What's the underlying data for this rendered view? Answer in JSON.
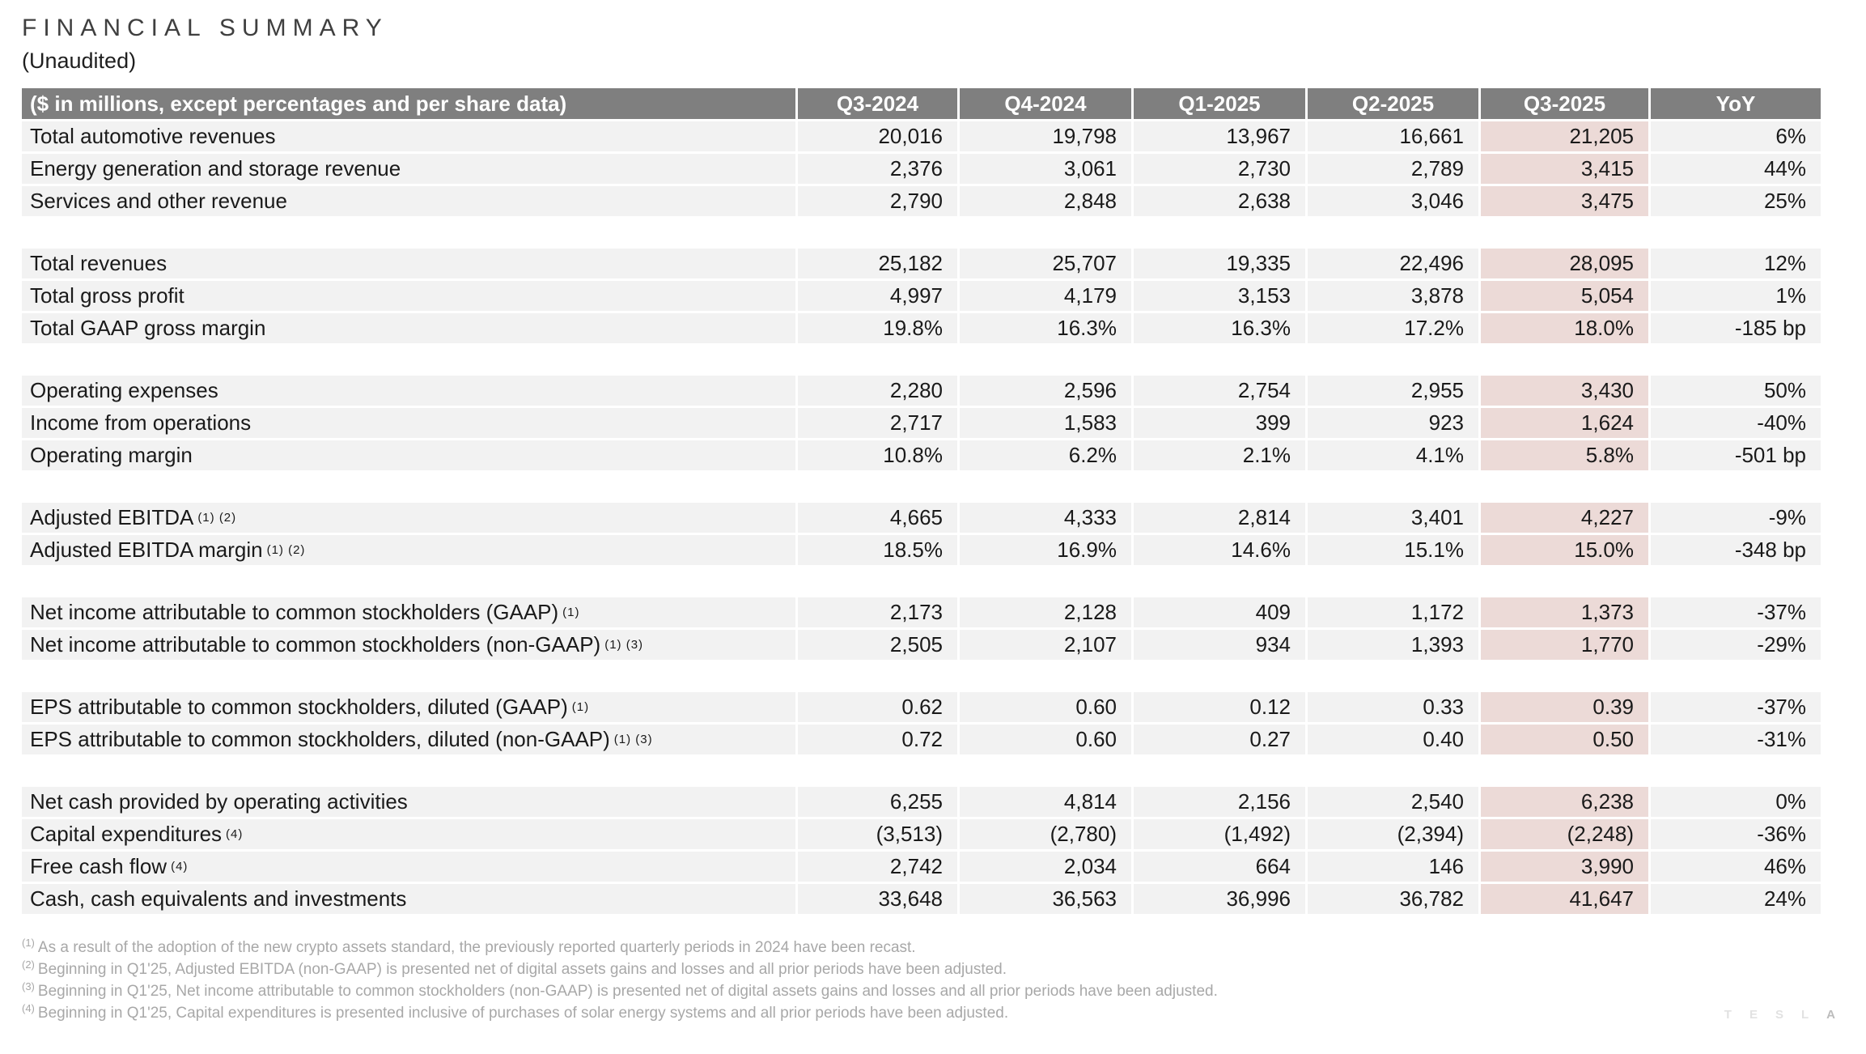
{
  "page": {
    "title": "FINANCIAL SUMMARY",
    "subtitle": "(Unaudited)"
  },
  "colors": {
    "header_bg": "#7f7f7f",
    "row_bg": "#f2f2f2",
    "highlight_bg": "#ecdad7",
    "footnote_text": "#a8a8a8"
  },
  "table": {
    "label_header": "($ in millions, except percentages and per share data)",
    "columns": [
      "Q3-2024",
      "Q4-2024",
      "Q1-2025",
      "Q2-2025",
      "Q3-2025",
      "YoY"
    ],
    "highlight_column": "Q3-2025",
    "groups": [
      {
        "rows": [
          {
            "label": "Total automotive revenues",
            "sup": "",
            "values": [
              "20,016",
              "19,798",
              "13,967",
              "16,661",
              "21,205",
              "6%"
            ]
          },
          {
            "label": "Energy generation and storage revenue",
            "sup": "",
            "values": [
              "2,376",
              "3,061",
              "2,730",
              "2,789",
              "3,415",
              "44%"
            ]
          },
          {
            "label": "Services and other revenue",
            "sup": "",
            "values": [
              "2,790",
              "2,848",
              "2,638",
              "3,046",
              "3,475",
              "25%"
            ]
          }
        ]
      },
      {
        "rows": [
          {
            "label": "Total revenues",
            "sup": "",
            "values": [
              "25,182",
              "25,707",
              "19,335",
              "22,496",
              "28,095",
              "12%"
            ]
          },
          {
            "label": "Total gross profit",
            "sup": "",
            "values": [
              "4,997",
              "4,179",
              "3,153",
              "3,878",
              "5,054",
              "1%"
            ]
          },
          {
            "label": "Total GAAP gross margin",
            "sup": "",
            "values": [
              "19.8%",
              "16.3%",
              "16.3%",
              "17.2%",
              "18.0%",
              "-185 bp"
            ]
          }
        ]
      },
      {
        "rows": [
          {
            "label": "Operating expenses",
            "sup": "",
            "values": [
              "2,280",
              "2,596",
              "2,754",
              "2,955",
              "3,430",
              "50%"
            ]
          },
          {
            "label": "Income from operations",
            "sup": "",
            "values": [
              "2,717",
              "1,583",
              "399",
              "923",
              "1,624",
              "-40%"
            ]
          },
          {
            "label": "Operating margin",
            "sup": "",
            "values": [
              "10.8%",
              "6.2%",
              "2.1%",
              "4.1%",
              "5.8%",
              "-501 bp"
            ]
          }
        ]
      },
      {
        "rows": [
          {
            "label": "Adjusted EBITDA",
            "sup": "(1) (2)",
            "values": [
              "4,665",
              "4,333",
              "2,814",
              "3,401",
              "4,227",
              "-9%"
            ]
          },
          {
            "label": "Adjusted EBITDA margin",
            "sup": "(1) (2)",
            "values": [
              "18.5%",
              "16.9%",
              "14.6%",
              "15.1%",
              "15.0%",
              "-348 bp"
            ]
          }
        ]
      },
      {
        "rows": [
          {
            "label": "Net income attributable to common stockholders (GAAP)",
            "sup": "(1)",
            "values": [
              "2,173",
              "2,128",
              "409",
              "1,172",
              "1,373",
              "-37%"
            ]
          },
          {
            "label": "Net income attributable to common stockholders (non-GAAP)",
            "sup": "(1) (3)",
            "values": [
              "2,505",
              "2,107",
              "934",
              "1,393",
              "1,770",
              "-29%"
            ]
          }
        ]
      },
      {
        "rows": [
          {
            "label": "EPS attributable to common stockholders, diluted (GAAP)",
            "sup": "(1)",
            "values": [
              "0.62",
              "0.60",
              "0.12",
              "0.33",
              "0.39",
              "-37%"
            ]
          },
          {
            "label": "EPS attributable to common stockholders, diluted (non-GAAP)",
            "sup": "(1) (3)",
            "values": [
              "0.72",
              "0.60",
              "0.27",
              "0.40",
              "0.50",
              "-31%"
            ]
          }
        ]
      },
      {
        "rows": [
          {
            "label": "Net cash provided by operating activities",
            "sup": "",
            "values": [
              "6,255",
              "4,814",
              "2,156",
              "2,540",
              "6,238",
              "0%"
            ]
          },
          {
            "label": "Capital expenditures",
            "sup": "(4)",
            "values": [
              "(3,513)",
              "(2,780)",
              "(1,492)",
              "(2,394)",
              "(2,248)",
              "-36%"
            ]
          },
          {
            "label": "Free cash flow",
            "sup": "(4)",
            "values": [
              "2,742",
              "2,034",
              "664",
              "146",
              "3,990",
              "46%"
            ]
          },
          {
            "label": "Cash, cash equivalents and investments",
            "sup": "",
            "values": [
              "33,648",
              "36,563",
              "36,996",
              "36,782",
              "41,647",
              "24%"
            ]
          }
        ]
      }
    ]
  },
  "footnotes": [
    {
      "marker": "(1)",
      "text": "As a result of the adoption of the new crypto assets standard, the previously reported quarterly periods in 2024 have been recast."
    },
    {
      "marker": "(2)",
      "text": "Beginning in Q1'25, Adjusted EBITDA (non-GAAP) is presented net of digital assets gains and losses and all prior periods have been adjusted."
    },
    {
      "marker": "(3)",
      "text": "Beginning in Q1'25, Net income attributable to common stockholders (non-GAAP) is presented net of digital assets gains and losses and all prior periods have been adjusted."
    },
    {
      "marker": "(4)",
      "text": "Beginning in Q1'25, Capital expenditures is presented inclusive of purchases of solar energy systems and all prior periods have been adjusted."
    }
  ],
  "watermark": "TESLA"
}
